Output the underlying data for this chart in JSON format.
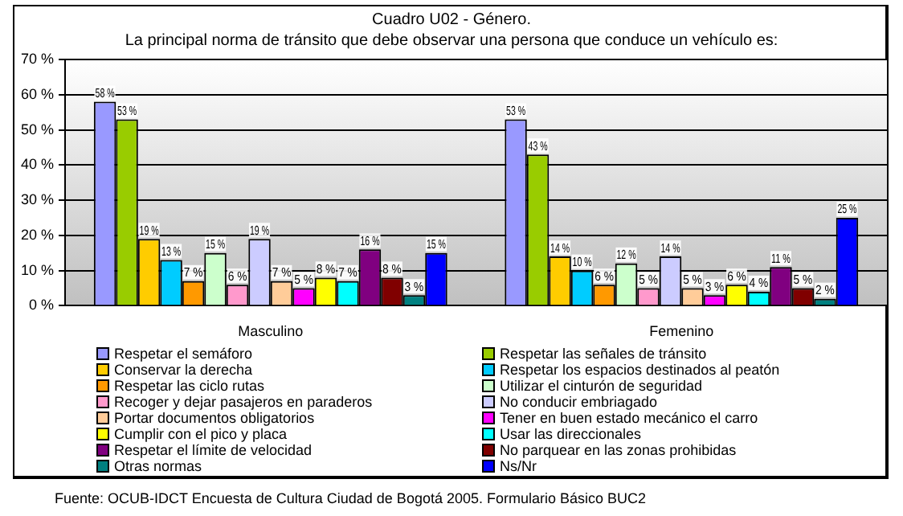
{
  "chart_data": {
    "type": "bar",
    "title": "Cuadro U02 - Género.",
    "subtitle": "La principal norma de tránsito que debe observar una persona que conduce un vehículo es:",
    "categories": [
      "Masculino",
      "Femenino"
    ],
    "series": [
      {
        "name": "Respetar el semáforo",
        "color": "#9999ff",
        "values": [
          58,
          53
        ],
        "value_labels": [
          "58 %",
          "53 %"
        ]
      },
      {
        "name": "Respetar las señales de tránsito",
        "color": "#99cc00",
        "values": [
          53,
          43
        ],
        "value_labels": [
          "53 %",
          "43 %"
        ]
      },
      {
        "name": "Conservar la derecha",
        "color": "#ffcc00",
        "values": [
          19,
          14
        ],
        "value_labels": [
          "19 %",
          "14 %"
        ]
      },
      {
        "name": "Respetar los espacios destinados al peatón",
        "color": "#00ccff",
        "values": [
          13,
          10
        ],
        "value_labels": [
          "13 %",
          "10 %"
        ]
      },
      {
        "name": "Respetar las ciclo rutas",
        "color": "#ff9900",
        "values": [
          7,
          6
        ],
        "value_labels": [
          "7 %",
          "6 %"
        ]
      },
      {
        "name": "Utilizar el cinturón de seguridad",
        "color": "#ccffcc",
        "values": [
          15,
          12
        ],
        "value_labels": [
          "15 %",
          "12 %"
        ]
      },
      {
        "name": "Recoger y dejar pasajeros en paraderos",
        "color": "#ff99cc",
        "values": [
          6,
          5
        ],
        "value_labels": [
          "6 %",
          "5 %"
        ]
      },
      {
        "name": "No conducir embriagado",
        "color": "#ccccff",
        "values": [
          19,
          14
        ],
        "value_labels": [
          "19 %",
          "14 %"
        ]
      },
      {
        "name": "Portar documentos obligatorios",
        "color": "#ffcc99",
        "values": [
          7,
          5
        ],
        "value_labels": [
          "7 %",
          "5 %"
        ]
      },
      {
        "name": "Tener en buen estado mecánico el carro",
        "color": "#ff00ff",
        "values": [
          5,
          3
        ],
        "value_labels": [
          "5 %",
          "3 %"
        ]
      },
      {
        "name": "Cumplir con el pico y placa",
        "color": "#ffff00",
        "values": [
          8,
          6
        ],
        "value_labels": [
          "8 %",
          "6 %"
        ]
      },
      {
        "name": "Usar las direccionales",
        "color": "#00ffff",
        "values": [
          7,
          4
        ],
        "value_labels": [
          "7 %",
          "4 %"
        ]
      },
      {
        "name": "Respetar el límite de velocidad",
        "color": "#800080",
        "values": [
          16,
          11
        ],
        "value_labels": [
          "16 %",
          "11 %"
        ]
      },
      {
        "name": "No parquear en las zonas prohibidas",
        "color": "#800000",
        "values": [
          8,
          5
        ],
        "value_labels": [
          "8 %",
          "5 %"
        ]
      },
      {
        "name": "Otras normas",
        "color": "#008080",
        "values": [
          3,
          2
        ],
        "value_labels": [
          "3 %",
          "2 %"
        ]
      },
      {
        "name": "Ns/Nr",
        "color": "#0000ff",
        "values": [
          15,
          25
        ],
        "value_labels": [
          "15 %",
          "25 %"
        ]
      }
    ],
    "ylim": [
      0,
      70
    ],
    "yticks": [
      {
        "value": 0,
        "label": "0 %"
      },
      {
        "value": 10,
        "label": "10 %"
      },
      {
        "value": 20,
        "label": "20 %"
      },
      {
        "value": 30,
        "label": "30 %"
      },
      {
        "value": 40,
        "label": "40 %"
      },
      {
        "value": 50,
        "label": "50 %"
      },
      {
        "value": 60,
        "label": "60 %"
      },
      {
        "value": 70,
        "label": "70 %"
      }
    ],
    "grid": "y",
    "legend": "bottom",
    "annotations": [
      "Fuente: OCUB-IDCT Encuesta de Cultura Ciudad de Bogotá 2005. Formulario Básico  BUC2"
    ]
  }
}
